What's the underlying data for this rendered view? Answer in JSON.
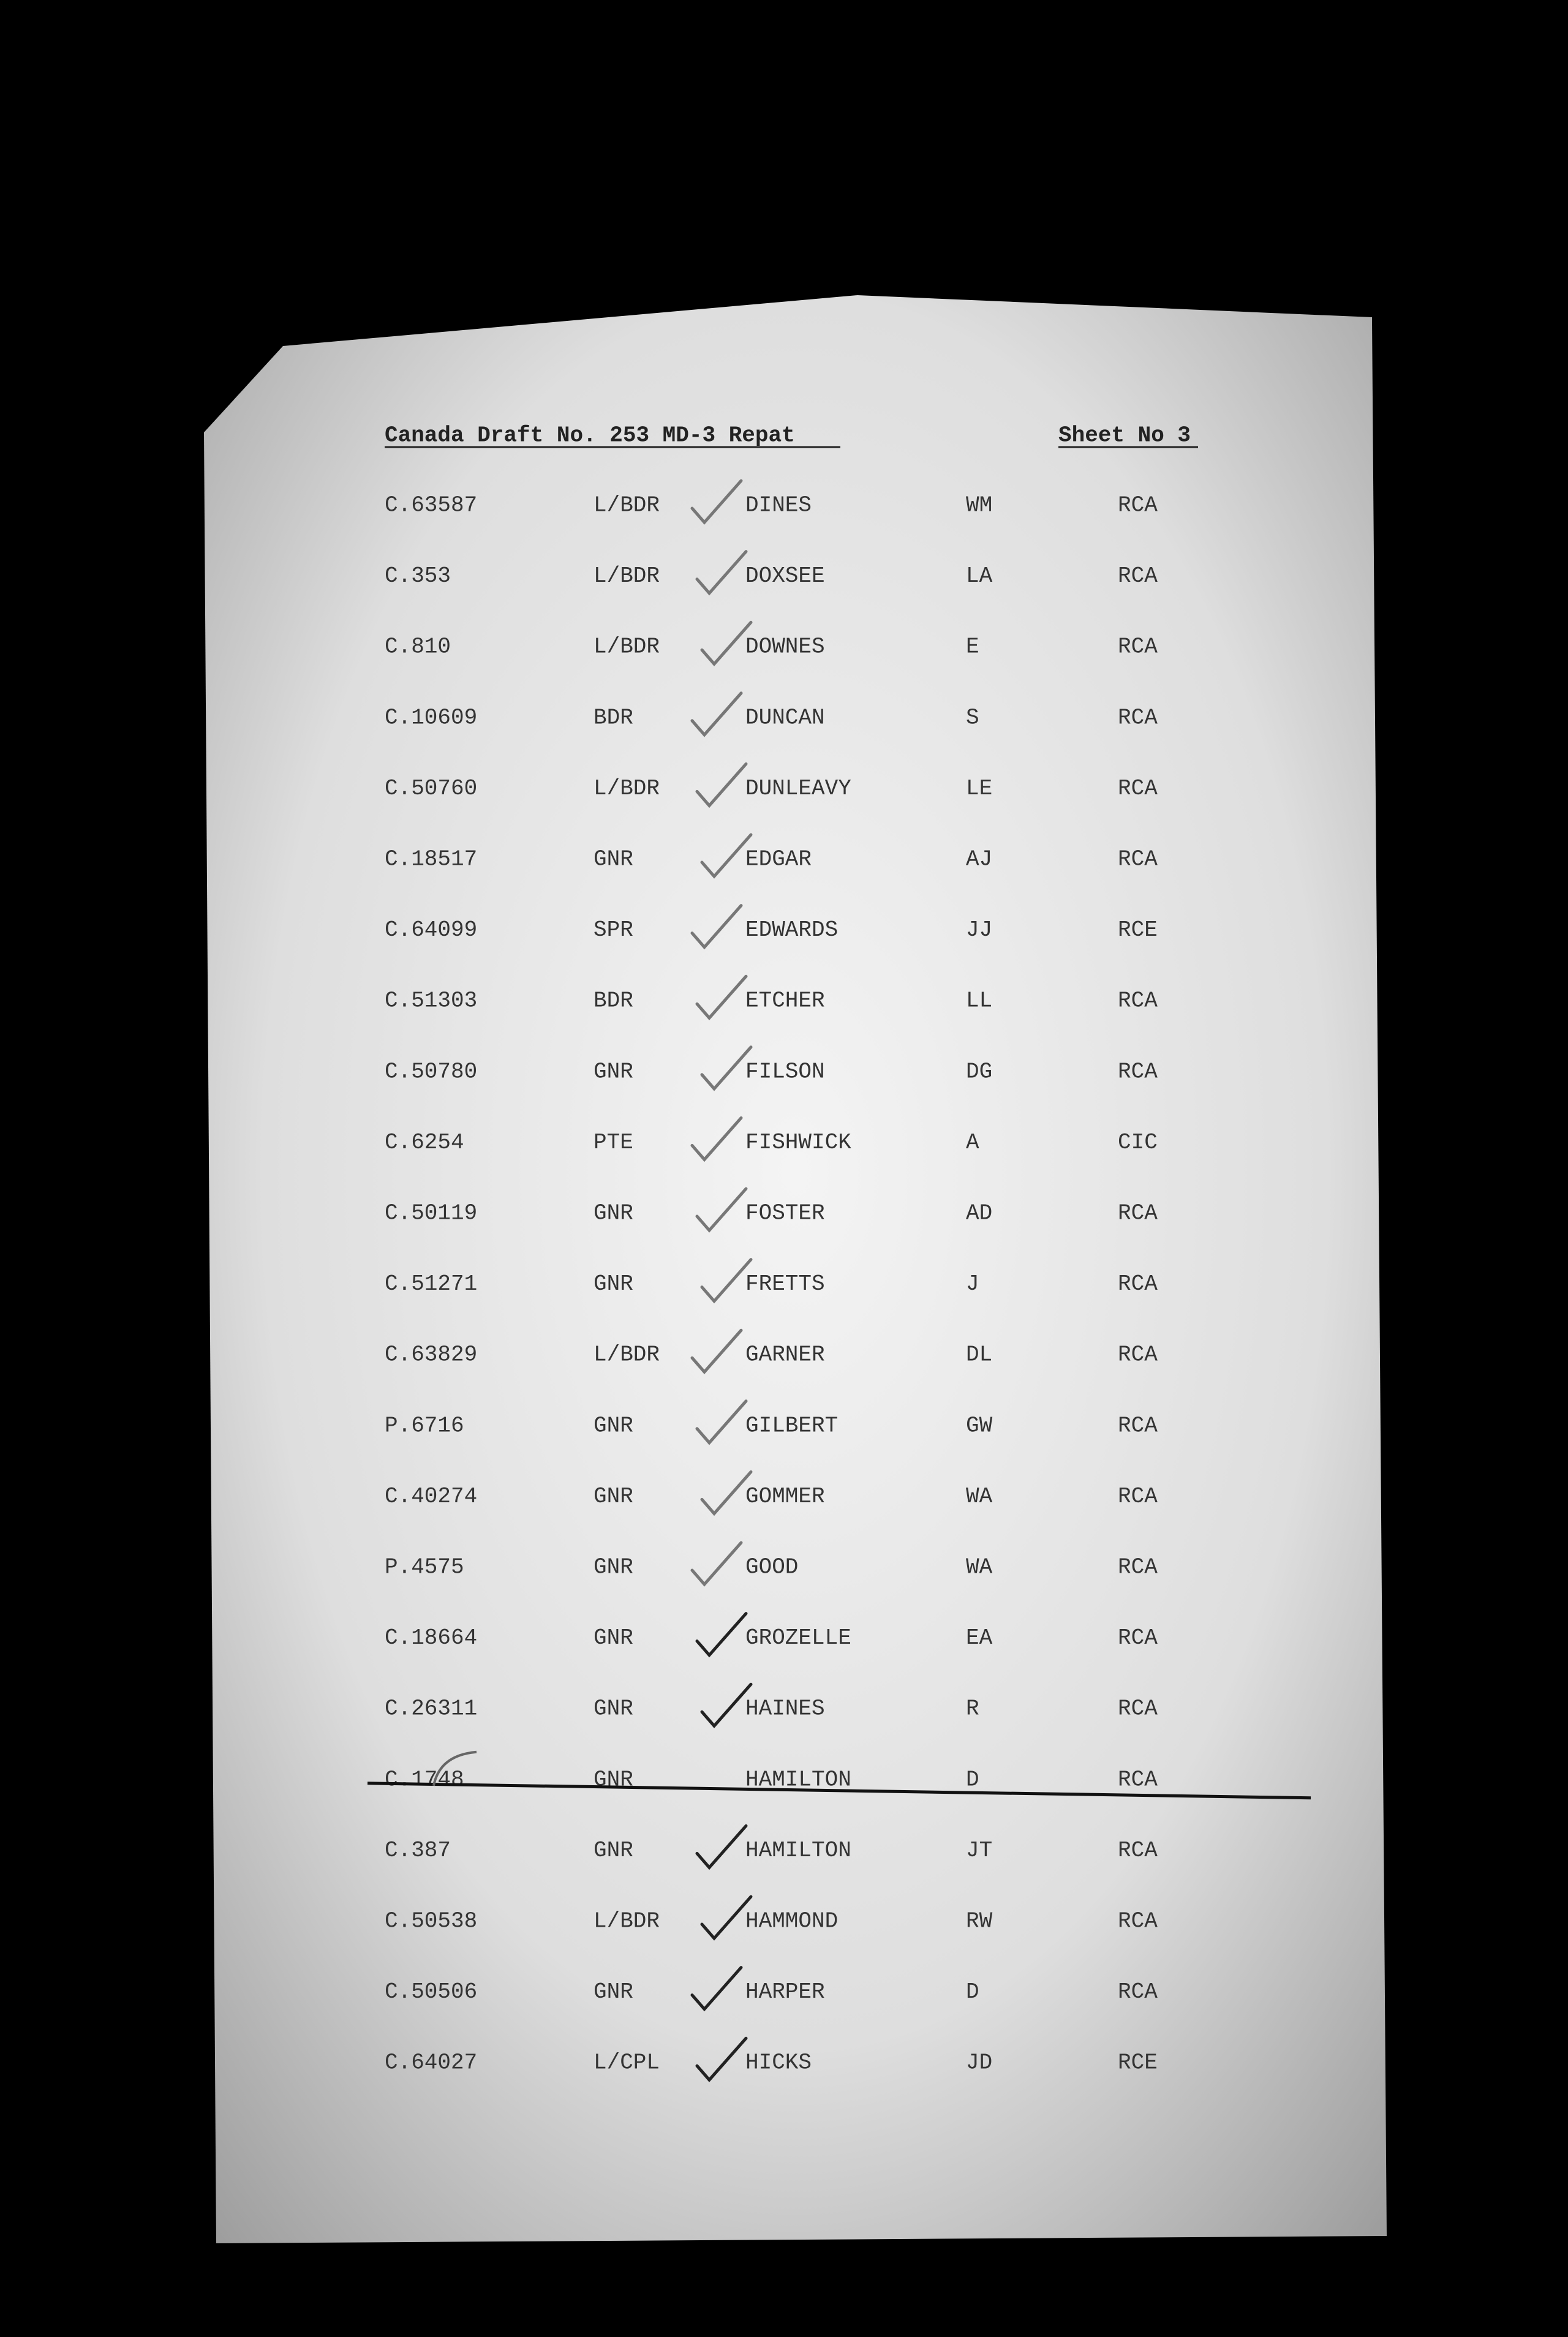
{
  "header": {
    "title": "Canada Draft No. 253  MD-3  Repat",
    "sheet": "Sheet No 3"
  },
  "table": {
    "rows": [
      [
        "C.63587",
        "L/BDR",
        "DINES",
        "WM",
        "RCA"
      ],
      [
        "C.353",
        "L/BDR",
        "DOXSEE",
        "LA",
        "RCA"
      ],
      [
        "C.810",
        "L/BDR",
        "DOWNES",
        "E",
        "RCA"
      ],
      [
        "C.10609",
        "BDR",
        "DUNCAN",
        "S",
        "RCA"
      ],
      [
        "C.50760",
        "L/BDR",
        "DUNLEAVY",
        "LE",
        "RCA"
      ],
      [
        "C.18517",
        "GNR",
        "EDGAR",
        "AJ",
        "RCA"
      ],
      [
        "C.64099",
        "SPR",
        "EDWARDS",
        "JJ",
        "RCE"
      ],
      [
        "C.51303",
        "BDR",
        "ETCHER",
        "LL",
        "RCA"
      ],
      [
        "C.50780",
        "GNR",
        "FILSON",
        "DG",
        "RCA"
      ],
      [
        "C.6254",
        "PTE",
        "FISHWICK",
        "A",
        "CIC"
      ],
      [
        "C.50119",
        "GNR",
        "FOSTER",
        "AD",
        "RCA"
      ],
      [
        "C.51271",
        "GNR",
        "FRETTS",
        "J",
        "RCA"
      ],
      [
        "C.63829",
        "L/BDR",
        "GARNER",
        "DL",
        "RCA"
      ],
      [
        "P.6716",
        "GNR",
        "GILBERT",
        "GW",
        "RCA"
      ],
      [
        "C.40274",
        "GNR",
        "GOMMER",
        "WA",
        "RCA"
      ],
      [
        "P.4575",
        "GNR",
        "GOOD",
        "WA",
        "RCA"
      ],
      [
        "C.18664",
        "GNR",
        "GROZELLE",
        "EA",
        "RCA"
      ],
      [
        "C.26311",
        "GNR",
        "HAINES",
        "R",
        "RCA"
      ],
      [
        "C.1748",
        "GNR",
        "HAMILTON",
        "D",
        "RCA"
      ],
      [
        "C.387",
        "GNR",
        "HAMILTON",
        "JT",
        "RCA"
      ],
      [
        "C.50538",
        "L/BDR",
        "HAMMOND",
        "RW",
        "RCA"
      ],
      [
        "C.50506",
        "GNR",
        "HARPER",
        "D",
        "RCA"
      ],
      [
        "C.64027",
        "L/CPL",
        "HICKS",
        "JD",
        "RCE"
      ]
    ]
  }
}
